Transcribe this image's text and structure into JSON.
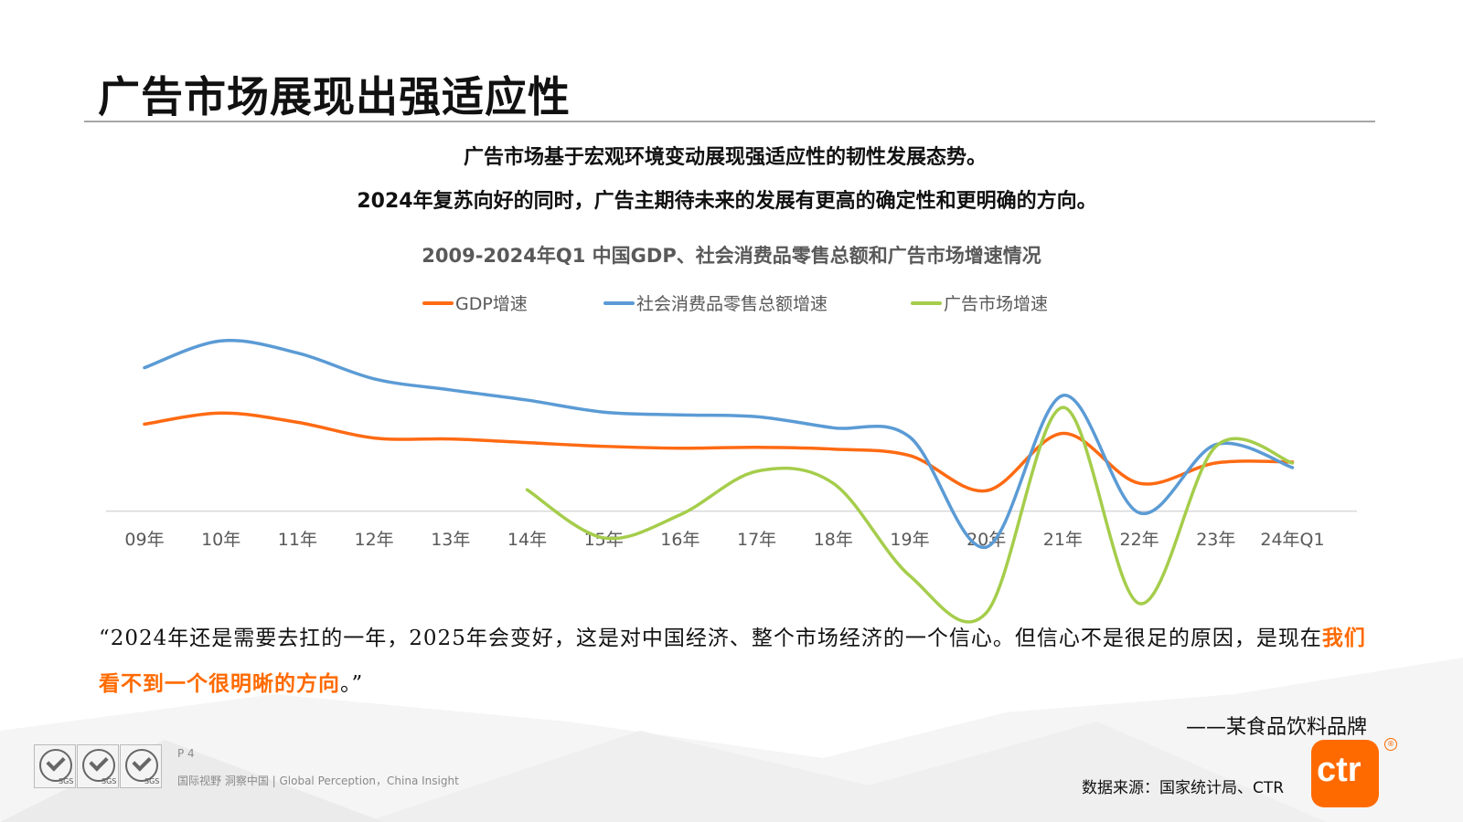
{
  "slide": {
    "title": "广告市场展现出强适应性",
    "subtitle_line1": "广告市场基于宏观环境变动展现强适应性的韧性发展态势。",
    "subtitle_line2": "2024年复苏向好的同时，广告主期待未来的发展有更高的确定性和更明确的方向。"
  },
  "quote": {
    "part1": "“2024年还是需要去扛的一年，2025年会变好，这是对中国经济、整个市场经济的一个信心。但信心不是很足的原因，是现在",
    "highlight": "我们看不到一个很明晰的方向",
    "part2": "。”",
    "attribution": "——某食品饮料品牌"
  },
  "footer": {
    "source": "数据来源：国家统计局、CTR",
    "page": "P 4",
    "tagline": "国际视野  洞察中国 | Global Perception，China Insight",
    "badge_label": "SGS",
    "logo_text": "ctr",
    "logo_mark": "®"
  },
  "colors": {
    "gdp": "#ff6a13",
    "retail": "#5b9bd5",
    "ad": "#a5cd4b",
    "highlight": "#ff6a00"
  },
  "chart_data": {
    "type": "line",
    "title": "2009-2024年Q1 中国GDP、社会消费品零售总额和广告市场增速情况",
    "categories": [
      "09年",
      "10年",
      "11年",
      "12年",
      "13年",
      "14年",
      "15年",
      "16年",
      "17年",
      "18年",
      "19年",
      "20年",
      "21年",
      "22年",
      "23年",
      "24年Q1"
    ],
    "xlabel": "",
    "ylabel": "",
    "ylim": [
      -11.5,
      20.5
    ],
    "grid": false,
    "legend_position": "top",
    "series": [
      {
        "name": "GDP增速",
        "color_key": "gdp",
        "values": [
          9.4,
          10.6,
          9.6,
          7.9,
          7.8,
          7.4,
          7.0,
          6.8,
          6.9,
          6.7,
          6.0,
          2.2,
          8.4,
          3.0,
          5.2,
          5.3
        ]
      },
      {
        "name": "社会消费品零售总额增速",
        "color_key": "retail",
        "values": [
          15.5,
          18.4,
          17.1,
          14.3,
          13.1,
          12.0,
          10.7,
          10.4,
          10.2,
          9.0,
          8.0,
          -3.9,
          12.5,
          -0.2,
          7.2,
          4.7
        ]
      },
      {
        "name": "广告市场增速",
        "color_key": "ad",
        "values": [
          null,
          null,
          null,
          null,
          null,
          2.3,
          -2.9,
          -0.4,
          4.3,
          3.0,
          -7.0,
          -11.0,
          11.2,
          -10.0,
          7.0,
          5.2
        ]
      }
    ]
  }
}
